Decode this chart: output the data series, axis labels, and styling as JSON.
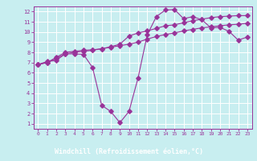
{
  "xlabel": "Windchill (Refroidissement éolien,°C)",
  "bg_color": "#c8eef0",
  "line_color": "#993399",
  "grid_color": "#ffffff",
  "axis_bar_color": "#660066",
  "xlim": [
    -0.5,
    23.5
  ],
  "ylim": [
    0.5,
    12.5
  ],
  "xticks": [
    0,
    1,
    2,
    3,
    4,
    5,
    6,
    7,
    8,
    9,
    10,
    11,
    12,
    13,
    14,
    15,
    16,
    17,
    18,
    19,
    20,
    21,
    22,
    23
  ],
  "yticks": [
    1,
    2,
    3,
    4,
    5,
    6,
    7,
    8,
    9,
    10,
    11,
    12
  ],
  "line1_x": [
    0,
    1,
    2,
    3,
    4,
    5,
    6,
    7,
    8,
    9,
    10,
    11,
    12,
    13,
    14,
    15,
    16,
    17,
    18,
    19,
    20,
    21,
    22,
    23
  ],
  "line1_y": [
    6.8,
    7.1,
    7.2,
    7.85,
    7.85,
    7.8,
    6.5,
    2.8,
    2.2,
    1.1,
    2.2,
    5.5,
    9.7,
    11.5,
    12.15,
    12.2,
    11.3,
    11.5,
    11.2,
    10.4,
    10.45,
    10.05,
    9.2,
    9.5
  ],
  "line2_x": [
    0,
    1,
    2,
    3,
    4,
    5,
    6,
    7,
    8,
    9,
    10,
    11,
    12,
    13,
    14,
    15,
    16,
    17,
    18,
    19,
    20,
    21,
    22,
    23
  ],
  "line2_y": [
    6.8,
    7.0,
    7.5,
    8.0,
    8.1,
    8.2,
    8.25,
    8.35,
    8.5,
    8.65,
    8.8,
    9.0,
    9.3,
    9.55,
    9.75,
    9.9,
    10.1,
    10.25,
    10.4,
    10.5,
    10.6,
    10.7,
    10.75,
    10.85
  ],
  "line3_x": [
    0,
    1,
    2,
    3,
    4,
    5,
    6,
    7,
    8,
    9,
    10,
    11,
    12,
    13,
    14,
    15,
    16,
    17,
    18,
    19,
    20,
    21,
    22,
    23
  ],
  "line3_y": [
    6.8,
    7.0,
    7.4,
    7.85,
    8.0,
    8.1,
    8.2,
    8.35,
    8.55,
    8.8,
    9.6,
    9.9,
    10.1,
    10.35,
    10.6,
    10.7,
    10.9,
    11.1,
    11.25,
    11.4,
    11.5,
    11.55,
    11.6,
    11.6
  ]
}
